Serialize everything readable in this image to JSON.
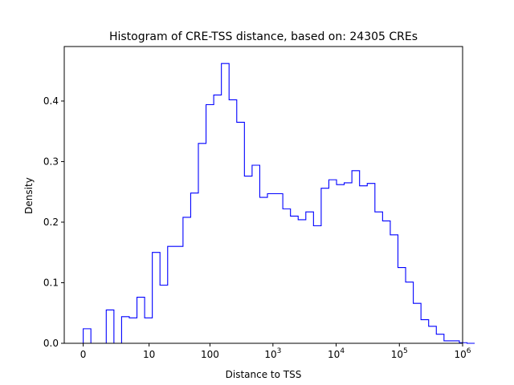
{
  "chart_data": {
    "type": "histogram",
    "title": "Histogram of CRE-TSS distance, based on: 24305 CREs",
    "xlabel": "Distance to TSS",
    "ylabel": "Density",
    "x_scale": "symlog",
    "x_scale_note": "x axis is log10(1 + distance); 0 maps to 0",
    "xlim_log10": [
      -0.3,
      6.0
    ],
    "ylim": [
      0,
      0.49
    ],
    "x_ticks": [
      {
        "value": 0,
        "label": "0"
      },
      {
        "value": 10,
        "label": "10"
      },
      {
        "value": 100,
        "label": "100"
      },
      {
        "value": 1000,
        "label": "10",
        "exp": "3"
      },
      {
        "value": 10000,
        "label": "10",
        "exp": "4"
      },
      {
        "value": 100000,
        "label": "10",
        "exp": "5"
      },
      {
        "value": 1000000,
        "label": "10",
        "exp": "6"
      }
    ],
    "y_ticks": [
      {
        "value": 0.0,
        "label": "0.0"
      },
      {
        "value": 0.1,
        "label": "0.1"
      },
      {
        "value": 0.2,
        "label": "0.2"
      },
      {
        "value": 0.3,
        "label": "0.3"
      },
      {
        "value": 0.4,
        "label": "0.4"
      }
    ],
    "line_color": "#0000ff",
    "bins_log10": {
      "start": 0,
      "width": 0.1214,
      "densities": [
        0.024,
        0.0,
        0.0,
        0.055,
        0.0,
        0.044,
        0.042,
        0.076,
        0.042,
        0.15,
        0.096,
        0.16,
        0.16,
        0.208,
        0.248,
        0.33,
        0.394,
        0.41,
        0.462,
        0.402,
        0.365,
        0.276,
        0.294,
        0.241,
        0.247,
        0.247,
        0.222,
        0.21,
        0.204,
        0.217,
        0.194,
        0.256,
        0.27,
        0.262,
        0.265,
        0.285,
        0.26,
        0.264,
        0.217,
        0.202,
        0.179,
        0.125,
        0.101,
        0.066,
        0.039,
        0.028,
        0.015,
        0.004,
        0.004,
        0.001,
        0.0
      ]
    }
  }
}
